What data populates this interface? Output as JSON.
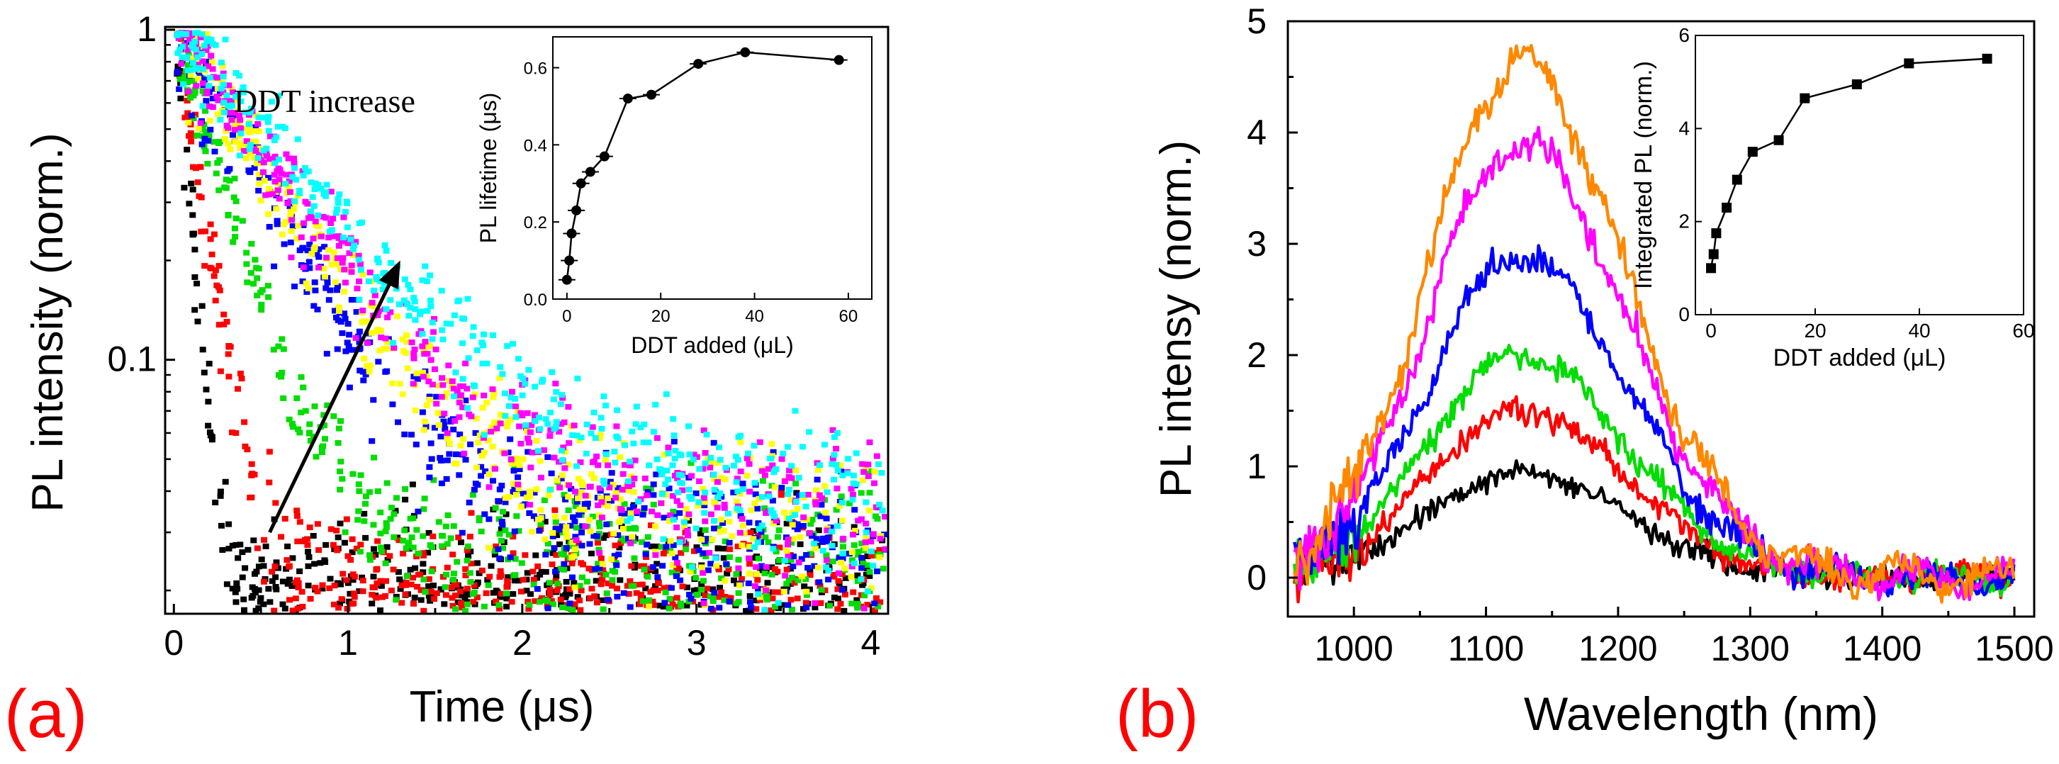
{
  "chart_data": [
    {
      "id": "a",
      "panel_label": "(a)",
      "type": "scatter",
      "yscale": "log",
      "xlabel": "Time (μs)",
      "ylabel": "PL intensity (norm.)",
      "xlim": [
        -0.05,
        4.1
      ],
      "ylim": [
        0.017,
        1.02
      ],
      "x_ticks": [
        "0",
        "1",
        "2",
        "3",
        "4"
      ],
      "y_ticks": [
        {
          "v": 1,
          "label": "1"
        },
        {
          "v": 0.1,
          "label": "0.1"
        }
      ],
      "annotation": {
        "text": "DDT increase",
        "arrow_from": [
          0.55,
          0.03
        ],
        "arrow_to": [
          1.3,
          0.2
        ]
      },
      "series": [
        {
          "name": "trace-1",
          "color": "#000000",
          "tau": 0.06,
          "floor": 0.022
        },
        {
          "name": "trace-2",
          "color": "#ff0000",
          "tau": 0.12,
          "floor": 0.021
        },
        {
          "name": "trace-3",
          "color": "#00dd00",
          "tau": 0.24,
          "floor": 0.026
        },
        {
          "name": "trace-4",
          "color": "#0000ff",
          "tau": 0.42,
          "floor": 0.03
        },
        {
          "name": "trace-5",
          "color": "#ffff00",
          "tau": 0.48,
          "floor": 0.032
        },
        {
          "name": "trace-6",
          "color": "#ff00ff",
          "tau": 0.55,
          "floor": 0.034
        },
        {
          "name": "trace-7",
          "color": "#00ffff",
          "tau": 0.65,
          "floor": 0.036
        }
      ],
      "inset": {
        "type": "line",
        "xlabel": "DDT added (μL)",
        "ylabel": "PL lifetime (μs)",
        "xlim": [
          -3,
          65
        ],
        "ylim": [
          0,
          0.68
        ],
        "x_ticks": [
          "0",
          "20",
          "40",
          "60"
        ],
        "y_ticks": [
          "0.0",
          "0.2",
          "0.4",
          "0.6"
        ],
        "x": [
          0,
          0.5,
          1,
          2,
          3,
          5,
          8,
          13,
          18,
          28,
          38,
          58
        ],
        "y": [
          0.05,
          0.1,
          0.17,
          0.23,
          0.3,
          0.33,
          0.37,
          0.52,
          0.53,
          0.61,
          0.64,
          0.62
        ]
      }
    },
    {
      "id": "b",
      "panel_label": "(b)",
      "type": "line",
      "xlabel": "Wavelength (nm)",
      "ylabel": "PL intensy (norm.)",
      "xlim": [
        950,
        1515
      ],
      "ylim": [
        -0.35,
        5.0
      ],
      "x_ticks": [
        "1000",
        "1100",
        "1200",
        "1300",
        "1400",
        "1500"
      ],
      "y_ticks": [
        "0",
        "1",
        "2",
        "3",
        "4",
        "5"
      ],
      "series": [
        {
          "name": "spectrum-1",
          "color": "#000000",
          "peak": 0.95
        },
        {
          "name": "spectrum-2",
          "color": "#ff0000",
          "peak": 1.5
        },
        {
          "name": "spectrum-3",
          "color": "#00dd00",
          "peak": 2.0
        },
        {
          "name": "spectrum-4",
          "color": "#0000ff",
          "peak": 2.9
        },
        {
          "name": "spectrum-5",
          "color": "#ff00ff",
          "peak": 3.9
        },
        {
          "name": "spectrum-6",
          "color": "#ff8800",
          "peak": 4.6
        }
      ],
      "inset": {
        "type": "line",
        "xlabel": "DDT added (μL)",
        "ylabel": "Integrated PL (norm.)",
        "xlim": [
          -3,
          60
        ],
        "ylim": [
          0,
          6
        ],
        "x_ticks": [
          "0",
          "20",
          "40",
          "60"
        ],
        "y_ticks": [
          "0",
          "2",
          "4",
          "6"
        ],
        "x": [
          0,
          0.5,
          1,
          3,
          5,
          8,
          13,
          18,
          28,
          38,
          53
        ],
        "y": [
          1.0,
          1.3,
          1.75,
          2.3,
          2.9,
          3.5,
          3.75,
          4.65,
          4.95,
          5.4,
          5.5
        ]
      }
    }
  ]
}
